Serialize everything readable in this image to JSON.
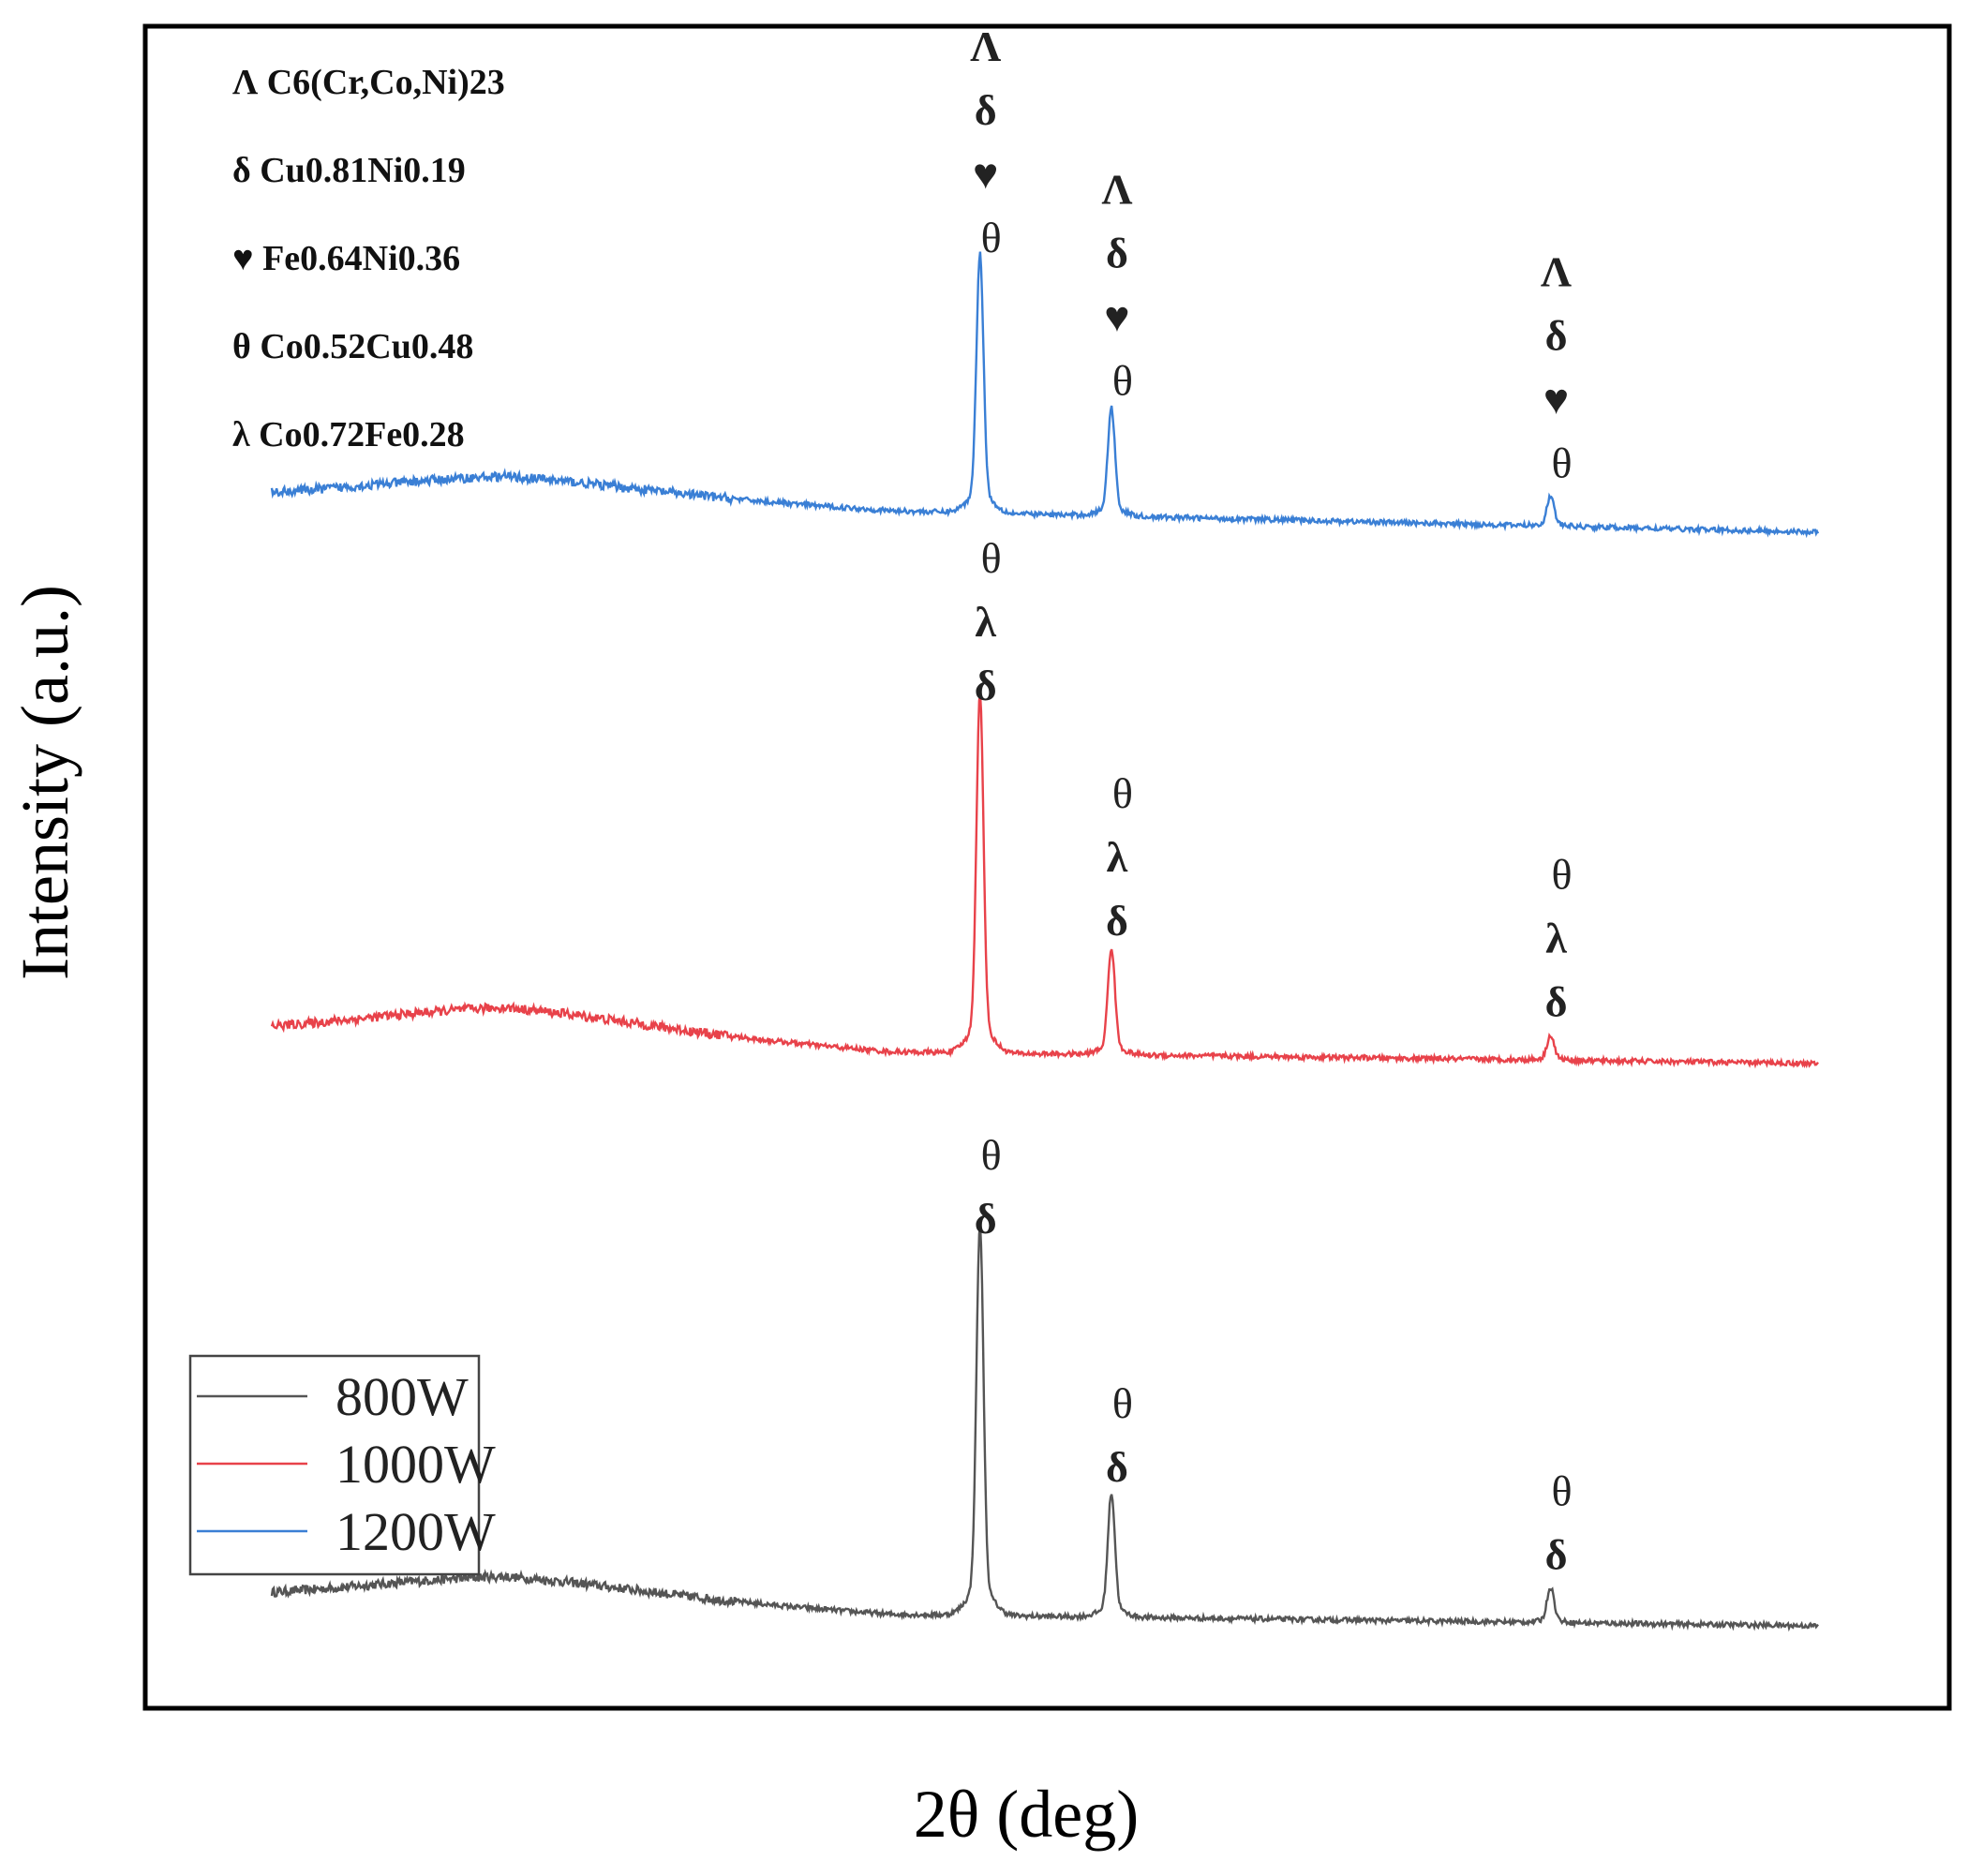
{
  "chart_data": {
    "type": "line",
    "title": "",
    "xlabel": "2θ (deg)",
    "ylabel": "Intensity (a.u.)",
    "xlim": [
      0,
      100
    ],
    "ylim": [
      0,
      100
    ],
    "x_ticks_shown": false,
    "y_ticks_shown": false,
    "grid": false,
    "legend_position": "bottom-left",
    "phase_legend_position": "top-left",
    "phase_legend": [
      {
        "symbol": "Λ",
        "phase": "C6(Cr,Co,Ni)23"
      },
      {
        "symbol": "δ",
        "phase": "Cu0.81Ni0.19"
      },
      {
        "symbol": "♥",
        "phase": "Fe0.64Ni0.36"
      },
      {
        "symbol": "θ",
        "phase": "Co0.52Cu0.48"
      },
      {
        "symbol": "λ",
        "phase": "Co0.72Fe0.28"
      }
    ],
    "series": [
      {
        "name": "800W",
        "color": "#555555",
        "baseline": [
          [
            0,
            5.6
          ],
          [
            15,
            6.0
          ],
          [
            40,
            4.4
          ],
          [
            100,
            3.7
          ]
        ],
        "hump": {
          "center": 15,
          "width": 12,
          "height": 0.7
        },
        "peaks": [
          {
            "x": 45.8,
            "height": 22.0,
            "labels": [
              "θ",
              "δ"
            ]
          },
          {
            "x": 54.3,
            "height": 7.0,
            "labels": [
              "θ",
              "δ"
            ]
          },
          {
            "x": 82.7,
            "height": 2.0,
            "labels": [
              "θ",
              "δ"
            ]
          }
        ]
      },
      {
        "name": "1000W",
        "color": "#e8424a",
        "baseline": [
          [
            0,
            40.0
          ],
          [
            15,
            40.5
          ],
          [
            40,
            38.6
          ],
          [
            100,
            37.9
          ]
        ],
        "hump": {
          "center": 15,
          "width": 12,
          "height": 0.8
        },
        "peaks": [
          {
            "x": 45.8,
            "height": 20.2,
            "labels": [
              "θ",
              "λ",
              "δ"
            ]
          },
          {
            "x": 54.3,
            "height": 6.0,
            "labels": [
              "θ",
              "λ",
              "δ"
            ]
          },
          {
            "x": 82.7,
            "height": 1.4,
            "labels": [
              "θ",
              "λ",
              "δ"
            ]
          }
        ]
      },
      {
        "name": "1200W",
        "color": "#3a7fd5",
        "baseline": [
          [
            0,
            72.5
          ],
          [
            15,
            73.0
          ],
          [
            40,
            71.5
          ],
          [
            100,
            70.2
          ]
        ],
        "hump": {
          "center": 15,
          "width": 12,
          "height": 0.6
        },
        "peaks": [
          {
            "x": 45.8,
            "height": 14.6,
            "labels": [
              "Λ",
              "δ",
              "♥",
              "θ"
            ]
          },
          {
            "x": 54.3,
            "height": 6.1,
            "labels": [
              "Λ",
              "δ",
              "♥",
              "θ"
            ]
          },
          {
            "x": 82.7,
            "height": 1.7,
            "labels": [
              "Λ",
              "δ",
              "♥",
              "θ"
            ]
          }
        ]
      }
    ]
  }
}
